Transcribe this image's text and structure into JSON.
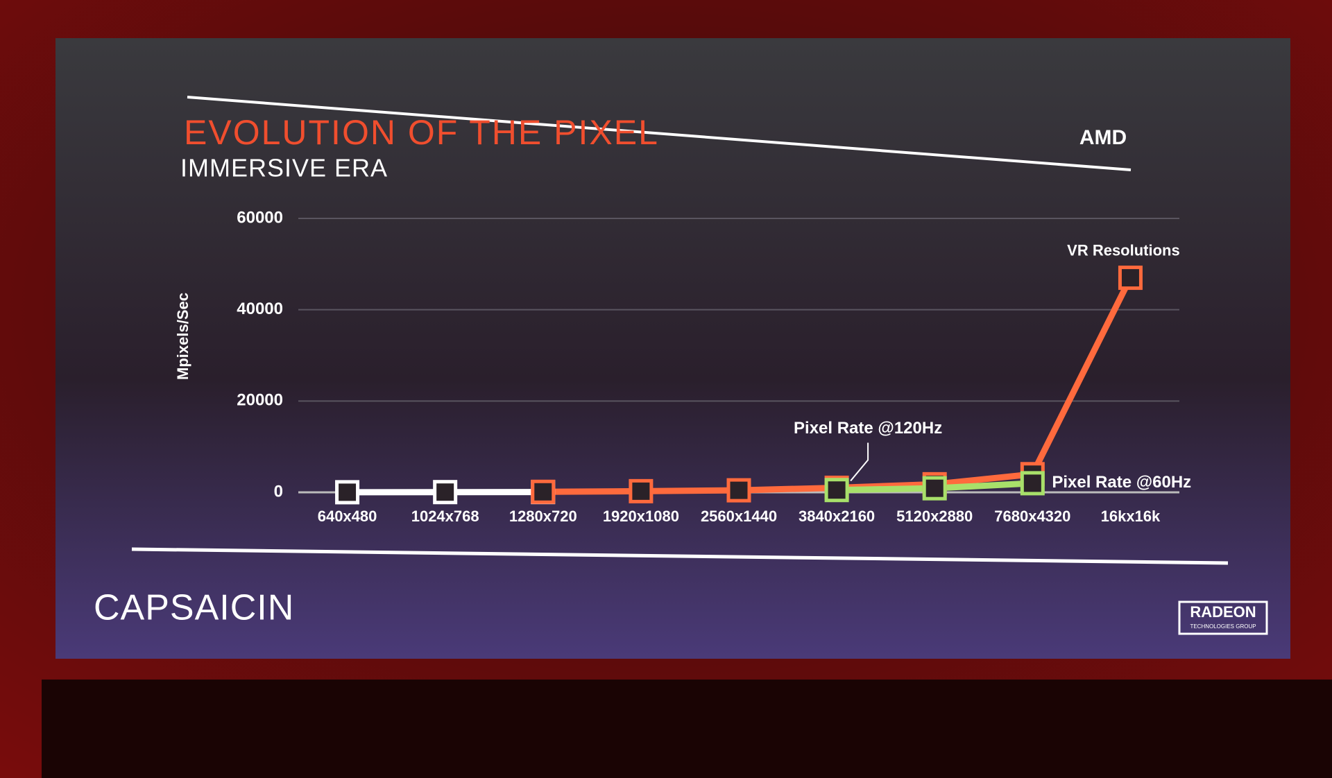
{
  "chart_data": {
    "type": "line",
    "title": "EVOLUTION OF THE PIXEL",
    "subtitle": "IMMERSIVE ERA",
    "y_label": "Mpixels/Sec",
    "annotation": "VR Resolutions",
    "categories": [
      "640x480",
      "1024x768",
      "1280x720",
      "1920x1080",
      "2560x1440",
      "3840x2160",
      "5120x2880",
      "7680x4320",
      "16kx16k"
    ],
    "series": [
      {
        "color": "#ffffff",
        "values": [
          18,
          47,
          55,
          null,
          null,
          null,
          null,
          null,
          null
        ]
      },
      {
        "name": "Pixel Rate @120Hz",
        "color": "#ff6a3d",
        "values": [
          null,
          null,
          111,
          249,
          442,
          995,
          1769,
          3981,
          47000
        ]
      },
      {
        "name": "Pixel Rate @60Hz",
        "color": "#a8e06a",
        "values": [
          null,
          null,
          null,
          null,
          null,
          498,
          885,
          1991,
          null
        ]
      }
    ],
    "ylim": [
      0,
      60000
    ],
    "yticks": [
      0,
      20000,
      40000,
      60000
    ],
    "grid": true
  },
  "branding": {
    "company": "AMD",
    "event": "CAPSAICIN",
    "group": "RADEON",
    "group_sub": "TECHNOLOGIES GROUP"
  }
}
